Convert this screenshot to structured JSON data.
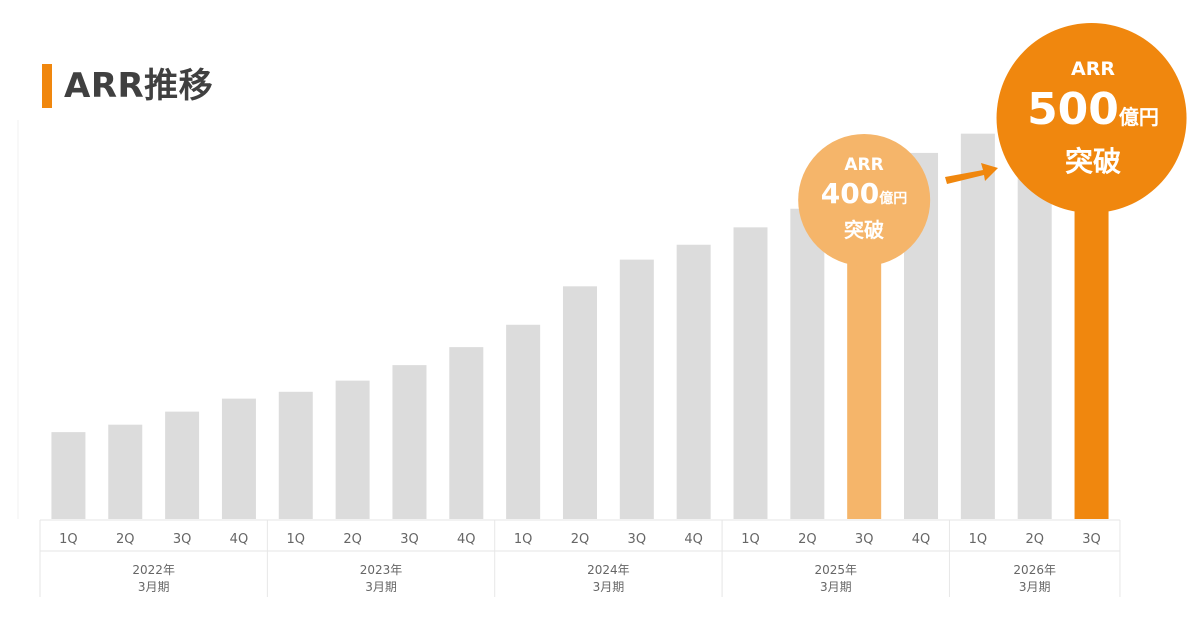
{
  "title": "ARR推移",
  "colors": {
    "accent": "#F0870E",
    "highlight_light": "#F5B56A",
    "bar_default": "#DCDCDC",
    "axis_text": "#666666",
    "grid_line": "#E6E6E6"
  },
  "chart_data": {
    "type": "bar",
    "categories": [
      "1Q",
      "2Q",
      "3Q",
      "4Q",
      "1Q",
      "2Q",
      "3Q",
      "4Q",
      "1Q",
      "2Q",
      "3Q",
      "4Q",
      "1Q",
      "2Q",
      "3Q",
      "4Q",
      "1Q",
      "2Q",
      "3Q"
    ],
    "groups": [
      {
        "label_line1": "2022年",
        "label_line2": "3月期",
        "count": 4
      },
      {
        "label_line1": "2023年",
        "label_line2": "3月期",
        "count": 4
      },
      {
        "label_line1": "2024年",
        "label_line2": "3月期",
        "count": 4
      },
      {
        "label_line1": "2025年",
        "label_line2": "3月期",
        "count": 4
      },
      {
        "label_line1": "2026年",
        "label_line2": "3月期",
        "count": 3
      }
    ],
    "values": [
      140,
      152,
      173,
      194,
      205,
      223,
      248,
      277,
      313,
      375,
      418,
      442,
      470,
      500,
      543,
      590,
      621,
      652,
      720
    ],
    "highlights": {
      "14": "light",
      "18": "strong"
    },
    "y_range": [
      0,
      780
    ],
    "callouts": [
      {
        "index": 14,
        "line1": "ARR",
        "value": "400",
        "unit": "億円",
        "line3": "突破"
      },
      {
        "index": 18,
        "line1": "ARR",
        "value": "500",
        "unit": "億円",
        "line3": "突破"
      }
    ],
    "grid": false
  }
}
